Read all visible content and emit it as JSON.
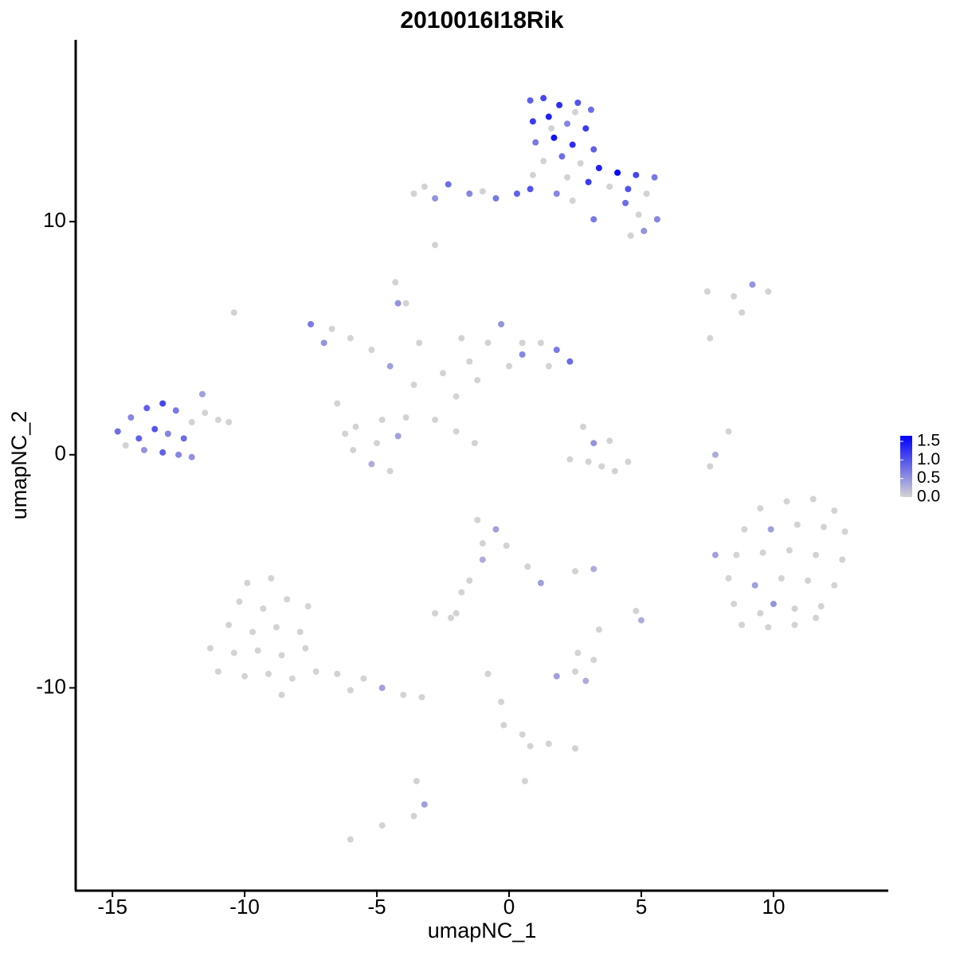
{
  "chart_data": {
    "type": "scatter",
    "title": "2010016I18Rik",
    "x_label": "umapNC_1",
    "y_label": "umapNC_2",
    "xlim": [
      -16.39,
      14.34
    ],
    "xticks": [
      -15,
      -10,
      -5,
      0,
      5,
      10
    ],
    "ylim": [
      -18.7,
      17.8
    ],
    "yticks": [
      -10,
      0,
      10
    ],
    "color_lim": [
      0,
      1.65
    ],
    "colors": [
      "#d3d3d3",
      "#0000ff"
    ],
    "color_ticks": [
      {
        "value": 0,
        "label": "0.0"
      },
      0.5,
      {
        "value": 1,
        "label": "1.0"
      },
      1.5
    ],
    "points": [
      {
        "x": 0.8,
        "y": 15.2,
        "value": 0.9
      },
      {
        "x": 1.3,
        "y": 15.3,
        "value": 1.1
      },
      {
        "x": 1.9,
        "y": 15.0,
        "value": 1.3
      },
      {
        "x": 2.6,
        "y": 15.1,
        "value": 1.0
      },
      {
        "x": 3.1,
        "y": 14.8,
        "value": 0.8
      },
      {
        "x": 0.9,
        "y": 14.3,
        "value": 1.2
      },
      {
        "x": 1.5,
        "y": 14.5,
        "value": 1.4
      },
      {
        "x": 2.2,
        "y": 14.2,
        "value": 0.6
      },
      {
        "x": 2.9,
        "y": 14.0,
        "value": 1.2
      },
      {
        "x": 1.0,
        "y": 13.4,
        "value": 0.7
      },
      {
        "x": 1.7,
        "y": 13.6,
        "value": 1.5
      },
      {
        "x": 2.4,
        "y": 13.3,
        "value": 1.3
      },
      {
        "x": 3.2,
        "y": 13.1,
        "value": 0.9
      },
      {
        "x": 1.3,
        "y": 12.6,
        "value": 0
      },
      {
        "x": 2.0,
        "y": 12.8,
        "value": 0.8
      },
      {
        "x": 2.7,
        "y": 12.5,
        "value": 0
      },
      {
        "x": 3.4,
        "y": 12.3,
        "value": 1.4
      },
      {
        "x": 4.1,
        "y": 12.1,
        "value": 1.6
      },
      {
        "x": 4.8,
        "y": 12.0,
        "value": 1.1
      },
      {
        "x": 5.5,
        "y": 11.9,
        "value": 0.7
      },
      {
        "x": 3.8,
        "y": 11.5,
        "value": 0
      },
      {
        "x": 4.5,
        "y": 11.4,
        "value": 1.0
      },
      {
        "x": 5.2,
        "y": 11.2,
        "value": 0
      },
      {
        "x": 3.0,
        "y": 11.7,
        "value": 1.2
      },
      {
        "x": 2.2,
        "y": 11.9,
        "value": 0
      },
      {
        "x": 4.4,
        "y": 10.8,
        "value": 0.8
      },
      {
        "x": 4.9,
        "y": 10.3,
        "value": 0
      },
      {
        "x": 5.6,
        "y": 10.1,
        "value": 0.6
      },
      {
        "x": 5.1,
        "y": 9.6,
        "value": 0.5
      },
      {
        "x": 4.6,
        "y": 9.4,
        "value": 0
      },
      {
        "x": 3.2,
        "y": 10.1,
        "value": 0.7
      },
      {
        "x": 0.9,
        "y": 12.0,
        "value": 0
      },
      {
        "x": 0.3,
        "y": 11.2,
        "value": 0.9
      },
      {
        "x": -0.5,
        "y": 11.0,
        "value": 0.7
      },
      {
        "x": -1.5,
        "y": 11.2,
        "value": 0.6
      },
      {
        "x": -2.3,
        "y": 11.6,
        "value": 0.8
      },
      {
        "x": -3.2,
        "y": 11.5,
        "value": 0
      },
      {
        "x": -3.6,
        "y": 11.2,
        "value": 0
      },
      {
        "x": -2.8,
        "y": 11.0,
        "value": 0.5
      },
      {
        "x": -1.0,
        "y": 11.3,
        "value": 0
      },
      {
        "x": 0.8,
        "y": 11.4,
        "value": 1.0
      },
      {
        "x": 1.8,
        "y": 11.2,
        "value": 0.6
      },
      {
        "x": 2.4,
        "y": 10.9,
        "value": 0
      },
      {
        "x": -2.8,
        "y": 9.0,
        "value": 0
      },
      {
        "x": 1.6,
        "y": 14.0,
        "value": 0
      },
      {
        "x": 2.5,
        "y": 14.7,
        "value": 0
      },
      {
        "x": -6.5,
        "y": 2.2,
        "value": 0
      },
      {
        "x": -5.8,
        "y": 1.2,
        "value": 0
      },
      {
        "x": -5.0,
        "y": 0.5,
        "value": 0
      },
      {
        "x": -5.9,
        "y": 0.2,
        "value": 0
      },
      {
        "x": -4.8,
        "y": 1.5,
        "value": 0
      },
      {
        "x": -4.2,
        "y": 0.8,
        "value": 0.4
      },
      {
        "x": -3.9,
        "y": 1.6,
        "value": 0
      },
      {
        "x": -5.2,
        "y": -0.4,
        "value": 0.3
      },
      {
        "x": -4.5,
        "y": -0.7,
        "value": 0
      },
      {
        "x": -6.2,
        "y": 0.9,
        "value": 0
      },
      {
        "x": -3.6,
        "y": 3.0,
        "value": 0
      },
      {
        "x": -4.5,
        "y": 3.8,
        "value": 0.4
      },
      {
        "x": -5.2,
        "y": 4.5,
        "value": 0
      },
      {
        "x": -6.0,
        "y": 5.0,
        "value": 0
      },
      {
        "x": -7.5,
        "y": 5.6,
        "value": 0.7
      },
      {
        "x": -7.0,
        "y": 4.8,
        "value": 0.5
      },
      {
        "x": -6.7,
        "y": 5.4,
        "value": 0
      },
      {
        "x": -3.4,
        "y": 4.8,
        "value": 0
      },
      {
        "x": -4.2,
        "y": 6.5,
        "value": 0.5
      },
      {
        "x": -2.5,
        "y": 3.5,
        "value": 0
      },
      {
        "x": -2.0,
        "y": 2.5,
        "value": 0
      },
      {
        "x": -1.5,
        "y": 4.0,
        "value": 0
      },
      {
        "x": -0.8,
        "y": 4.8,
        "value": 0
      },
      {
        "x": -0.3,
        "y": 5.6,
        "value": 0.5
      },
      {
        "x": -1.2,
        "y": 3.2,
        "value": 0
      },
      {
        "x": 0.0,
        "y": 3.8,
        "value": 0
      },
      {
        "x": 0.5,
        "y": 4.3,
        "value": 0.6
      },
      {
        "x": 1.2,
        "y": 4.8,
        "value": 0
      },
      {
        "x": 1.8,
        "y": 4.5,
        "value": 0.7
      },
      {
        "x": 2.3,
        "y": 4.0,
        "value": 0.8
      },
      {
        "x": 1.5,
        "y": 3.8,
        "value": 0
      },
      {
        "x": -1.8,
        "y": 5.0,
        "value": 0
      },
      {
        "x": -2.8,
        "y": 1.5,
        "value": 0
      },
      {
        "x": -2.0,
        "y": 1.0,
        "value": 0
      },
      {
        "x": -1.3,
        "y": 0.5,
        "value": 0
      },
      {
        "x": -3.9,
        "y": 6.5,
        "value": 0
      },
      {
        "x": -4.3,
        "y": 7.4,
        "value": 0
      },
      {
        "x": 0.5,
        "y": 4.8,
        "value": 0
      },
      {
        "x": 2.8,
        "y": 1.2,
        "value": 0
      },
      {
        "x": 3.2,
        "y": 0.5,
        "value": 0.5
      },
      {
        "x": 3.5,
        "y": -0.5,
        "value": 0
      },
      {
        "x": 3.0,
        "y": -0.3,
        "value": 0
      },
      {
        "x": 4.0,
        "y": -0.7,
        "value": 0
      },
      {
        "x": 2.3,
        "y": -0.2,
        "value": 0
      },
      {
        "x": 4.5,
        "y": -0.3,
        "value": 0
      },
      {
        "x": 3.8,
        "y": 0.6,
        "value": 0
      },
      {
        "x": 7.8,
        "y": 0.0,
        "value": 0.3
      },
      {
        "x": 8.3,
        "y": 1.0,
        "value": 0
      },
      {
        "x": 7.6,
        "y": -0.5,
        "value": 0
      },
      {
        "x": 7.5,
        "y": 7.0,
        "value": 0
      },
      {
        "x": 8.5,
        "y": 6.8,
        "value": 0
      },
      {
        "x": 9.2,
        "y": 7.3,
        "value": 0.5
      },
      {
        "x": 9.8,
        "y": 7.0,
        "value": 0
      },
      {
        "x": 8.8,
        "y": 6.1,
        "value": 0
      },
      {
        "x": 7.6,
        "y": 5.0,
        "value": 0
      },
      {
        "x": -14.8,
        "y": 1.0,
        "value": 0.8
      },
      {
        "x": -14.3,
        "y": 1.6,
        "value": 0.6
      },
      {
        "x": -13.7,
        "y": 2.0,
        "value": 0.9
      },
      {
        "x": -13.1,
        "y": 2.2,
        "value": 1.1
      },
      {
        "x": -12.6,
        "y": 1.9,
        "value": 0.7
      },
      {
        "x": -14.0,
        "y": 0.7,
        "value": 0.9
      },
      {
        "x": -13.4,
        "y": 1.1,
        "value": 1.0
      },
      {
        "x": -12.9,
        "y": 0.9,
        "value": 0.6
      },
      {
        "x": -12.3,
        "y": 0.7,
        "value": 0.8
      },
      {
        "x": -13.8,
        "y": 0.2,
        "value": 0.5
      },
      {
        "x": -13.1,
        "y": 0.1,
        "value": 0.9
      },
      {
        "x": -12.5,
        "y": 0.0,
        "value": 0.6
      },
      {
        "x": -14.5,
        "y": 0.4,
        "value": 0
      },
      {
        "x": -12.0,
        "y": 1.4,
        "value": 0
      },
      {
        "x": -11.5,
        "y": 1.8,
        "value": 0
      },
      {
        "x": -11.0,
        "y": 1.5,
        "value": 0
      },
      {
        "x": -11.6,
        "y": 2.6,
        "value": 0.4
      },
      {
        "x": -10.6,
        "y": 1.4,
        "value": 0
      },
      {
        "x": -12.0,
        "y": -0.1,
        "value": 0.5
      },
      {
        "x": -10.4,
        "y": 6.1,
        "value": 0
      },
      {
        "x": -9.9,
        "y": -5.5,
        "value": 0
      },
      {
        "x": -9.0,
        "y": -5.3,
        "value": 0
      },
      {
        "x": -10.2,
        "y": -6.3,
        "value": 0
      },
      {
        "x": -9.3,
        "y": -6.6,
        "value": 0
      },
      {
        "x": -8.4,
        "y": -6.2,
        "value": 0
      },
      {
        "x": -7.6,
        "y": -6.5,
        "value": 0
      },
      {
        "x": -10.6,
        "y": -7.3,
        "value": 0
      },
      {
        "x": -9.7,
        "y": -7.6,
        "value": 0
      },
      {
        "x": -8.8,
        "y": -7.4,
        "value": 0
      },
      {
        "x": -7.9,
        "y": -7.6,
        "value": 0
      },
      {
        "x": -11.3,
        "y": -8.3,
        "value": 0
      },
      {
        "x": -10.4,
        "y": -8.5,
        "value": 0
      },
      {
        "x": -9.5,
        "y": -8.4,
        "value": 0
      },
      {
        "x": -8.6,
        "y": -8.6,
        "value": 0
      },
      {
        "x": -7.7,
        "y": -8.3,
        "value": 0
      },
      {
        "x": -11.0,
        "y": -9.3,
        "value": 0
      },
      {
        "x": -10.0,
        "y": -9.5,
        "value": 0
      },
      {
        "x": -9.1,
        "y": -9.4,
        "value": 0
      },
      {
        "x": -8.2,
        "y": -9.6,
        "value": 0
      },
      {
        "x": -7.3,
        "y": -9.3,
        "value": 0
      },
      {
        "x": -6.5,
        "y": -9.4,
        "value": 0
      },
      {
        "x": -5.5,
        "y": -9.6,
        "value": 0
      },
      {
        "x": -4.8,
        "y": -10.0,
        "value": 0.4
      },
      {
        "x": -4.0,
        "y": -10.3,
        "value": 0
      },
      {
        "x": -3.3,
        "y": -10.4,
        "value": 0
      },
      {
        "x": -6.0,
        "y": -10.1,
        "value": 0
      },
      {
        "x": -8.6,
        "y": -10.3,
        "value": 0
      },
      {
        "x": -3.5,
        "y": -14.0,
        "value": 0
      },
      {
        "x": -3.2,
        "y": -15.0,
        "value": 0.4
      },
      {
        "x": -3.6,
        "y": -15.5,
        "value": 0
      },
      {
        "x": -6.0,
        "y": -16.5,
        "value": 0
      },
      {
        "x": -4.8,
        "y": -15.9,
        "value": 0
      },
      {
        "x": -1.2,
        "y": -2.8,
        "value": 0
      },
      {
        "x": -0.5,
        "y": -3.2,
        "value": 0.4
      },
      {
        "x": -1.0,
        "y": -3.8,
        "value": 0
      },
      {
        "x": -0.1,
        "y": -3.9,
        "value": 0
      },
      {
        "x": -1.0,
        "y": -4.5,
        "value": 0.3
      },
      {
        "x": 0.7,
        "y": -4.8,
        "value": 0
      },
      {
        "x": 1.2,
        "y": -5.5,
        "value": 0.4
      },
      {
        "x": -1.5,
        "y": -5.4,
        "value": 0
      },
      {
        "x": -2.0,
        "y": -6.8,
        "value": 0
      },
      {
        "x": -2.8,
        "y": -6.8,
        "value": 0
      },
      {
        "x": -2.2,
        "y": -7.0,
        "value": 0
      },
      {
        "x": -1.8,
        "y": -5.9,
        "value": 0
      },
      {
        "x": -0.8,
        "y": -9.4,
        "value": 0
      },
      {
        "x": -0.3,
        "y": -10.6,
        "value": 0
      },
      {
        "x": -0.2,
        "y": -11.6,
        "value": 0
      },
      {
        "x": 0.5,
        "y": -12.0,
        "value": 0
      },
      {
        "x": 1.5,
        "y": -12.4,
        "value": 0
      },
      {
        "x": 2.5,
        "y": -12.6,
        "value": 0
      },
      {
        "x": 0.8,
        "y": -12.5,
        "value": 0
      },
      {
        "x": 0.6,
        "y": -14.0,
        "value": 0
      },
      {
        "x": 1.8,
        "y": -9.5,
        "value": 0.4
      },
      {
        "x": 2.5,
        "y": -9.3,
        "value": 0
      },
      {
        "x": 2.9,
        "y": -9.7,
        "value": 0.3
      },
      {
        "x": 3.2,
        "y": -8.8,
        "value": 0
      },
      {
        "x": 2.6,
        "y": -8.5,
        "value": 0
      },
      {
        "x": 3.2,
        "y": -4.9,
        "value": 0.3
      },
      {
        "x": 2.5,
        "y": -5.0,
        "value": 0
      },
      {
        "x": 5.0,
        "y": -7.1,
        "value": 0.3
      },
      {
        "x": 4.8,
        "y": -6.7,
        "value": 0
      },
      {
        "x": 3.4,
        "y": -7.5,
        "value": 0
      },
      {
        "x": 9.5,
        "y": -2.3,
        "value": 0
      },
      {
        "x": 10.5,
        "y": -2.0,
        "value": 0
      },
      {
        "x": 11.5,
        "y": -1.9,
        "value": 0
      },
      {
        "x": 12.3,
        "y": -2.4,
        "value": 0
      },
      {
        "x": 8.9,
        "y": -3.2,
        "value": 0
      },
      {
        "x": 9.9,
        "y": -3.2,
        "value": 0.4
      },
      {
        "x": 10.9,
        "y": -3.0,
        "value": 0
      },
      {
        "x": 11.9,
        "y": -3.1,
        "value": 0
      },
      {
        "x": 12.7,
        "y": -3.3,
        "value": 0
      },
      {
        "x": 7.8,
        "y": -4.3,
        "value": 0.4
      },
      {
        "x": 8.6,
        "y": -4.3,
        "value": 0
      },
      {
        "x": 9.6,
        "y": -4.2,
        "value": 0
      },
      {
        "x": 10.6,
        "y": -4.1,
        "value": 0
      },
      {
        "x": 11.6,
        "y": -4.3,
        "value": 0
      },
      {
        "x": 12.6,
        "y": -4.5,
        "value": 0
      },
      {
        "x": 8.3,
        "y": -5.3,
        "value": 0
      },
      {
        "x": 9.3,
        "y": -5.6,
        "value": 0.4
      },
      {
        "x": 10.3,
        "y": -5.3,
        "value": 0
      },
      {
        "x": 11.3,
        "y": -5.4,
        "value": 0
      },
      {
        "x": 12.3,
        "y": -5.6,
        "value": 0
      },
      {
        "x": 8.5,
        "y": -6.4,
        "value": 0
      },
      {
        "x": 9.5,
        "y": -6.8,
        "value": 0
      },
      {
        "x": 10.0,
        "y": -6.4,
        "value": 0.5
      },
      {
        "x": 10.8,
        "y": -6.6,
        "value": 0
      },
      {
        "x": 11.8,
        "y": -6.5,
        "value": 0
      },
      {
        "x": 8.8,
        "y": -7.3,
        "value": 0
      },
      {
        "x": 9.8,
        "y": -7.4,
        "value": 0
      },
      {
        "x": 10.8,
        "y": -7.3,
        "value": 0
      },
      {
        "x": 11.6,
        "y": -7.0,
        "value": 0
      }
    ]
  }
}
